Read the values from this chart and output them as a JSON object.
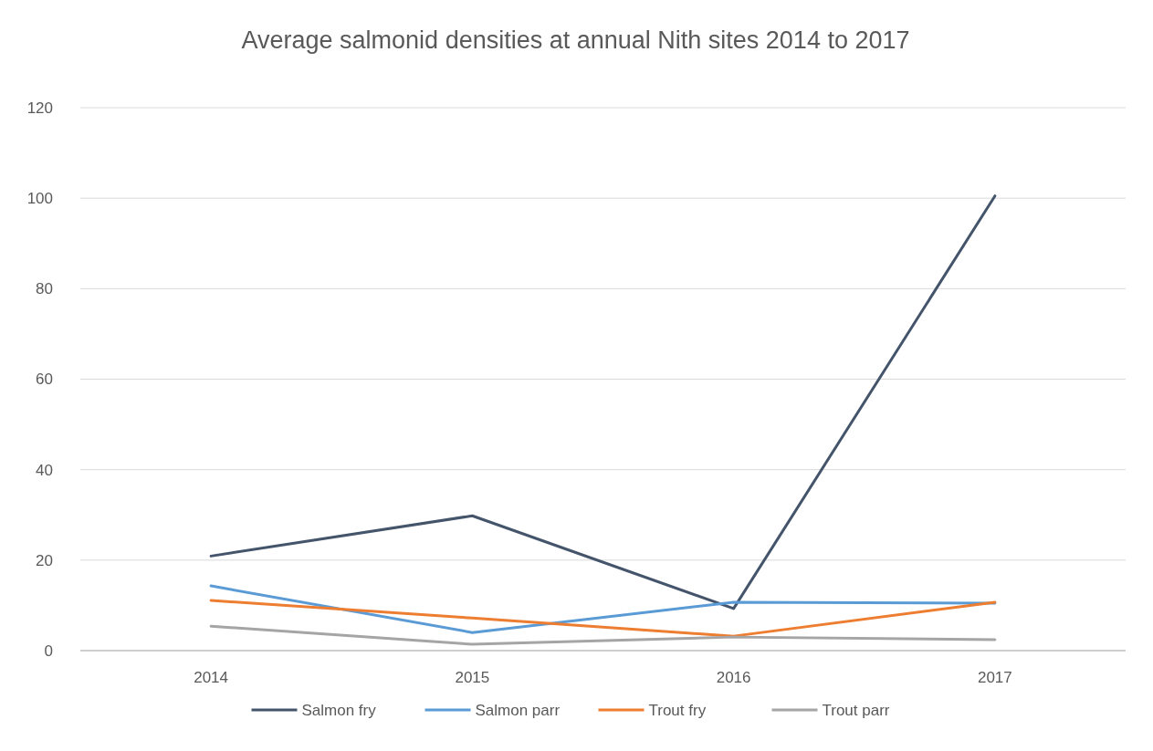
{
  "chart_data": {
    "type": "line",
    "title": "Average salmonid densities at annual Nith sites 2014 to 2017",
    "categories": [
      "2014",
      "2015",
      "2016",
      "2017"
    ],
    "series": [
      {
        "name": "Salmon fry",
        "color": "#44546a",
        "values": [
          20.9,
          29.8,
          9.3,
          100.5
        ]
      },
      {
        "name": "Salmon parr",
        "color": "#5b9bd5",
        "values": [
          14.3,
          4.0,
          10.7,
          10.5
        ]
      },
      {
        "name": "Trout fry",
        "color": "#ed7d31",
        "values": [
          11.1,
          7.2,
          3.2,
          10.7
        ]
      },
      {
        "name": "Trout parr",
        "color": "#a5a5a5",
        "values": [
          5.4,
          1.4,
          3.0,
          2.4
        ]
      }
    ],
    "ylim": [
      0,
      120
    ],
    "yticks": [
      0,
      20,
      40,
      60,
      80,
      100,
      120
    ],
    "grid": "y",
    "legend": "bottom",
    "marker": "none",
    "line_style": "solid"
  }
}
